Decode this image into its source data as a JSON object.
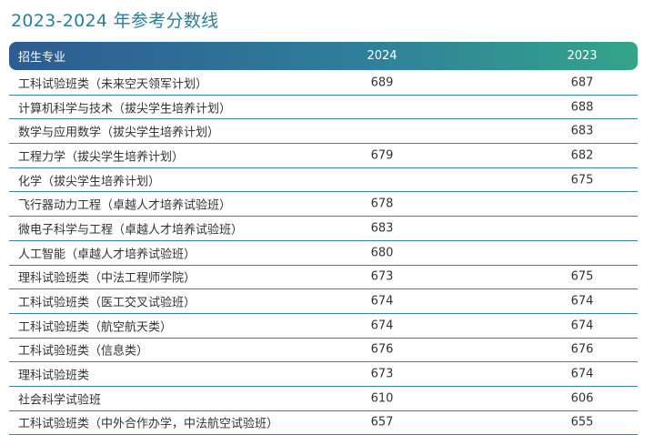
{
  "title": "2023-2024 年参考分数线",
  "table": {
    "headers": [
      "招生专业",
      "2024",
      "2023"
    ],
    "rows": [
      [
        "工科试验班类（未来空天领军计划）",
        "689",
        "687"
      ],
      [
        "计算机科学与技术（拔尖学生培养计划）",
        "",
        "688"
      ],
      [
        "数学与应用数学（拔尖学生培养计划）",
        "",
        "683"
      ],
      [
        "工程力学（拔尖学生培养计划）",
        "679",
        "682"
      ],
      [
        "化学（拔尖学生培养计划）",
        "",
        "675"
      ],
      [
        "飞行器动力工程（卓越人才培养试验班）",
        "678",
        ""
      ],
      [
        "微电子科学与工程（卓越人才培养试验班）",
        "683",
        ""
      ],
      [
        "人工智能（卓越人才培养试验班）",
        "680",
        ""
      ],
      [
        "理科试验班类（中法工程师学院）",
        "673",
        "675"
      ],
      [
        "工科试验班类（医工交叉试验班）",
        "674",
        "674"
      ],
      [
        "工科试验班类（航空航天类）",
        "674",
        "674"
      ],
      [
        "工科试验班类（信息类）",
        "676",
        "676"
      ],
      [
        "理科试验班类",
        "673",
        "674"
      ],
      [
        "社会科学试验班",
        "610",
        "606"
      ],
      [
        "工科试验班类（中外合作办学，中法航空试验班）",
        "657",
        "655"
      ]
    ]
  },
  "colors": {
    "title": "#2b7e9a",
    "header_gradient_start": "#2d5b92",
    "header_gradient_end": "#34a48a",
    "row_divider": "#3f7fa0"
  }
}
